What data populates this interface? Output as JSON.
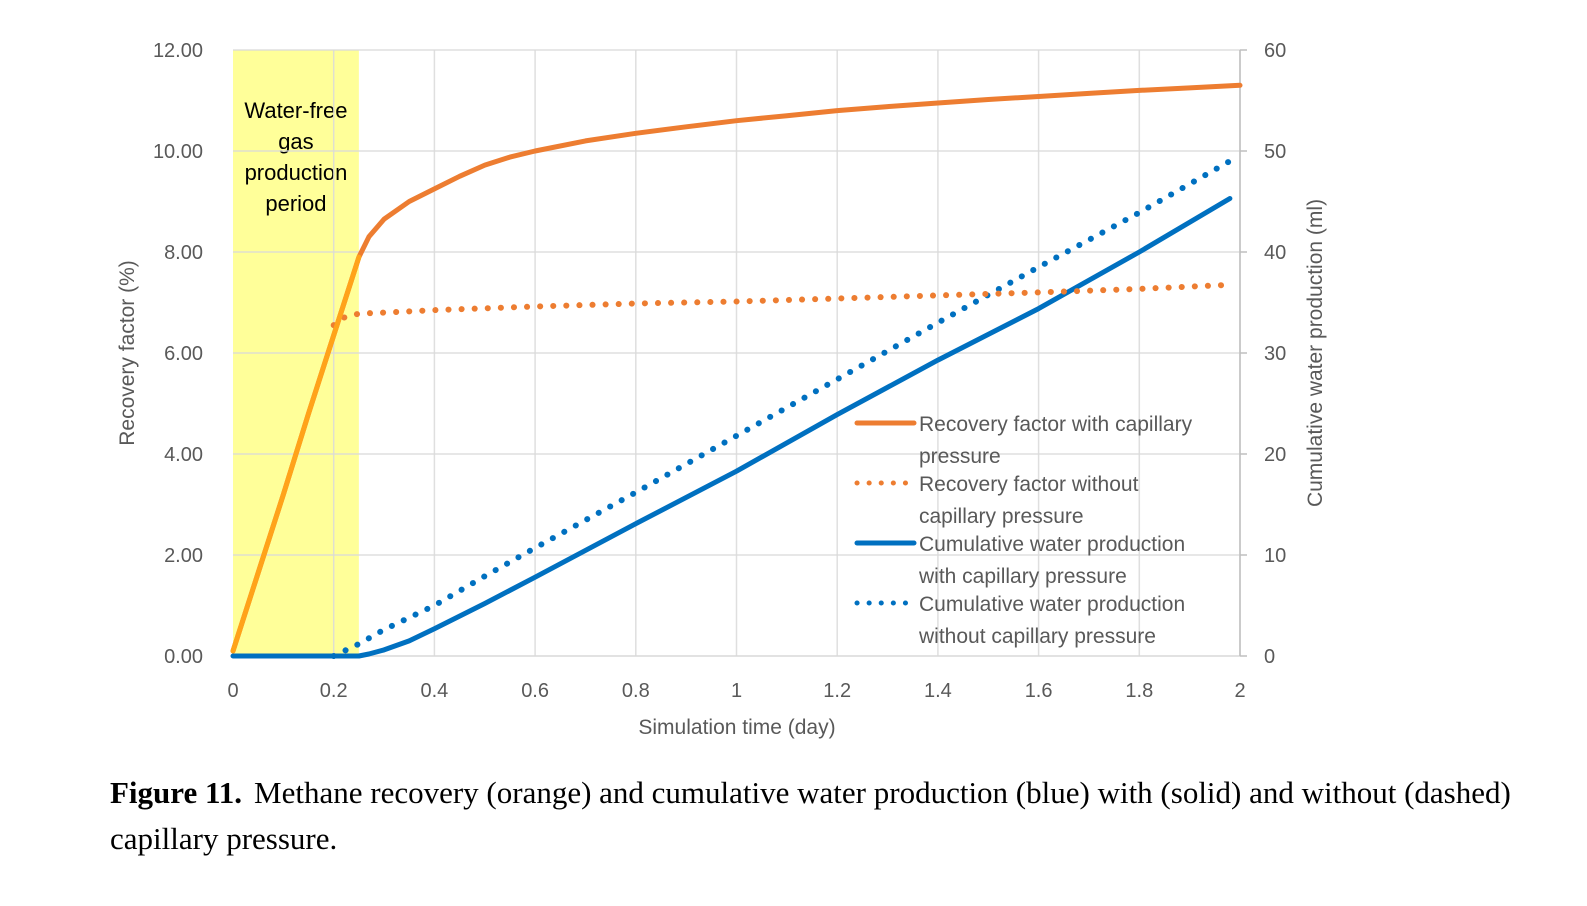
{
  "chart_data": {
    "type": "line",
    "title": "",
    "xlabel": "Simulation time (day)",
    "ylabel": "Recovery factor (%)",
    "y2label": "Cumulative water production (ml)",
    "xlim": [
      0,
      2
    ],
    "ylim": [
      0,
      12
    ],
    "y2lim": [
      0,
      60
    ],
    "grid": true,
    "x_ticks": [
      "0",
      "0.2",
      "0.4",
      "0.6",
      "0.8",
      "1",
      "1.2",
      "1.4",
      "1.6",
      "1.8",
      "2"
    ],
    "x_tick_values": [
      0,
      0.2,
      0.4,
      0.6,
      0.8,
      1.0,
      1.2,
      1.4,
      1.6,
      1.8,
      2.0
    ],
    "y_ticks": [
      "0.00",
      "2.00",
      "4.00",
      "6.00",
      "8.00",
      "10.00",
      "12.00"
    ],
    "y_tick_values": [
      0,
      2,
      4,
      6,
      8,
      10,
      12
    ],
    "y2_ticks": [
      "0",
      "10",
      "20",
      "30",
      "40",
      "50",
      "60"
    ],
    "y2_tick_values": [
      0,
      10,
      20,
      30,
      40,
      50,
      60
    ],
    "annotation": {
      "lines": [
        "Water-free",
        "gas",
        "production",
        "period"
      ],
      "x_range": [
        0,
        0.25
      ],
      "color": "#FFFF99"
    },
    "legend_position": "center-right",
    "series": [
      {
        "name": "Recovery factor with capillary pressure",
        "legend_lines": [
          "Recovery factor with capillary",
          "pressure"
        ],
        "axis": "left",
        "style": "solid",
        "color": "#ED7D31",
        "early_color": "#FFA31A",
        "x": [
          0,
          0.05,
          0.1,
          0.15,
          0.2,
          0.25,
          0.27,
          0.3,
          0.35,
          0.4,
          0.45,
          0.5,
          0.55,
          0.6,
          0.7,
          0.8,
          0.9,
          1.0,
          1.1,
          1.2,
          1.3,
          1.4,
          1.5,
          1.6,
          1.7,
          1.8,
          1.9,
          2.0
        ],
        "values": [
          0.1,
          1.65,
          3.2,
          4.8,
          6.35,
          7.9,
          8.3,
          8.65,
          9.0,
          9.25,
          9.5,
          9.72,
          9.88,
          10.0,
          10.2,
          10.35,
          10.48,
          10.6,
          10.7,
          10.8,
          10.88,
          10.95,
          11.02,
          11.08,
          11.14,
          11.2,
          11.25,
          11.3
        ]
      },
      {
        "name": "Recovery factor without capillary pressure",
        "legend_lines": [
          "Recovery factor without",
          "capillary pressure"
        ],
        "axis": "left",
        "style": "dotted",
        "color": "#ED7D31",
        "x": [
          0.2,
          0.22,
          0.25,
          0.3,
          0.4,
          0.6,
          0.8,
          1.0,
          1.2,
          1.4,
          1.6,
          1.8,
          1.98
        ],
        "values": [
          6.55,
          6.7,
          6.78,
          6.8,
          6.85,
          6.92,
          6.98,
          7.02,
          7.08,
          7.14,
          7.2,
          7.27,
          7.35
        ]
      },
      {
        "name": "Cumulative water production with capillary pressure",
        "legend_lines": [
          "Cumulative water production",
          "with capillary pressure"
        ],
        "axis": "right",
        "style": "solid",
        "color": "#0070C0",
        "x": [
          0,
          0.2,
          0.25,
          0.27,
          0.3,
          0.35,
          0.4,
          0.5,
          0.6,
          0.8,
          1.0,
          1.2,
          1.4,
          1.6,
          1.8,
          1.98
        ],
        "values": [
          0,
          0,
          0,
          0.2,
          0.6,
          1.5,
          2.7,
          5.2,
          7.8,
          13.1,
          18.3,
          23.9,
          29.3,
          34.4,
          40.0,
          45.3
        ]
      },
      {
        "name": "Cumulative water production without capillary pressure",
        "legend_lines": [
          "Cumulative water production",
          "without capillary pressure"
        ],
        "axis": "right",
        "style": "dotted",
        "color": "#0070C0",
        "x": [
          0.2,
          0.25,
          0.3,
          0.4,
          0.5,
          0.6,
          0.8,
          1.0,
          1.2,
          1.4,
          1.6,
          1.8,
          1.98
        ],
        "values": [
          0,
          1.2,
          2.6,
          5.0,
          7.9,
          10.7,
          16.2,
          21.8,
          27.4,
          33.0,
          38.5,
          43.9,
          49.0
        ]
      }
    ]
  },
  "caption": {
    "label": "Figure 11.",
    "text": "Methane recovery (orange) and cumulative water production (blue) with (solid) and without (dashed) capillary pressure."
  }
}
